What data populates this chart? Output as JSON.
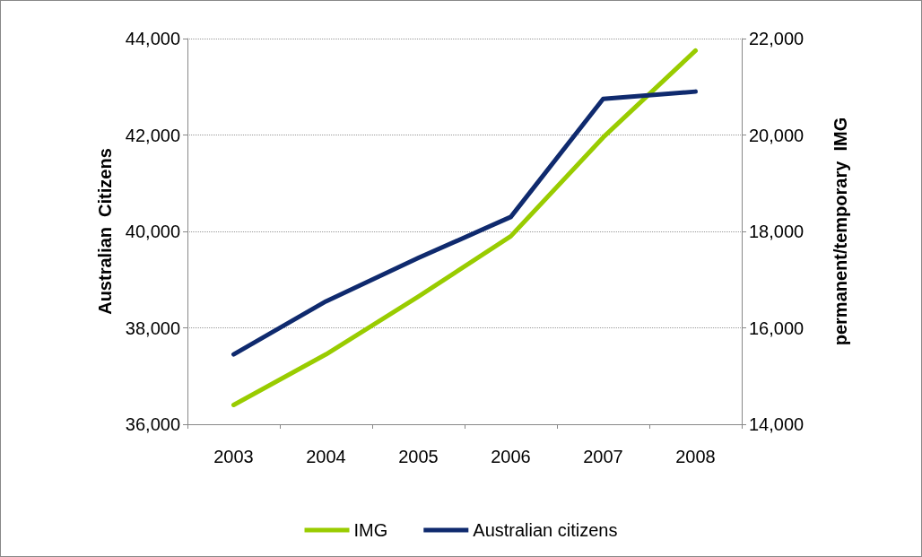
{
  "chart_data": {
    "type": "line",
    "categories": [
      "2003",
      "2004",
      "2005",
      "2006",
      "2007",
      "2008"
    ],
    "series": [
      {
        "name": "IMG",
        "color": "#99cc00",
        "axis": "y2",
        "values": [
          14400,
          15450,
          16650,
          17900,
          19950,
          21750
        ]
      },
      {
        "name": "Australian citizens",
        "color": "#0f2a6e",
        "values": [
          37450,
          38550,
          39450,
          40300,
          42750,
          42900
        ]
      }
    ],
    "ylabel": "Australian  Citizens",
    "y2label": "permanent/temporary  IMG",
    "ylim": [
      36000,
      44000
    ],
    "yticks": [
      {
        "value": 36000,
        "label": "36,000"
      },
      {
        "value": 38000,
        "label": "38,000"
      },
      {
        "value": 40000,
        "label": "40,000"
      },
      {
        "value": 42000,
        "label": "42,000"
      },
      {
        "value": 44000,
        "label": "44,000"
      }
    ],
    "y2lim": [
      14000,
      22000
    ],
    "y2ticks": [
      {
        "value": 14000,
        "label": "14,000"
      },
      {
        "value": 16000,
        "label": "16,000"
      },
      {
        "value": 18000,
        "label": "18,000"
      },
      {
        "value": 20000,
        "label": "20,000"
      },
      {
        "value": 22000,
        "label": "22,000"
      }
    ],
    "grid": "y",
    "legend": "bottom",
    "marker": "none",
    "line_style": "solid"
  }
}
